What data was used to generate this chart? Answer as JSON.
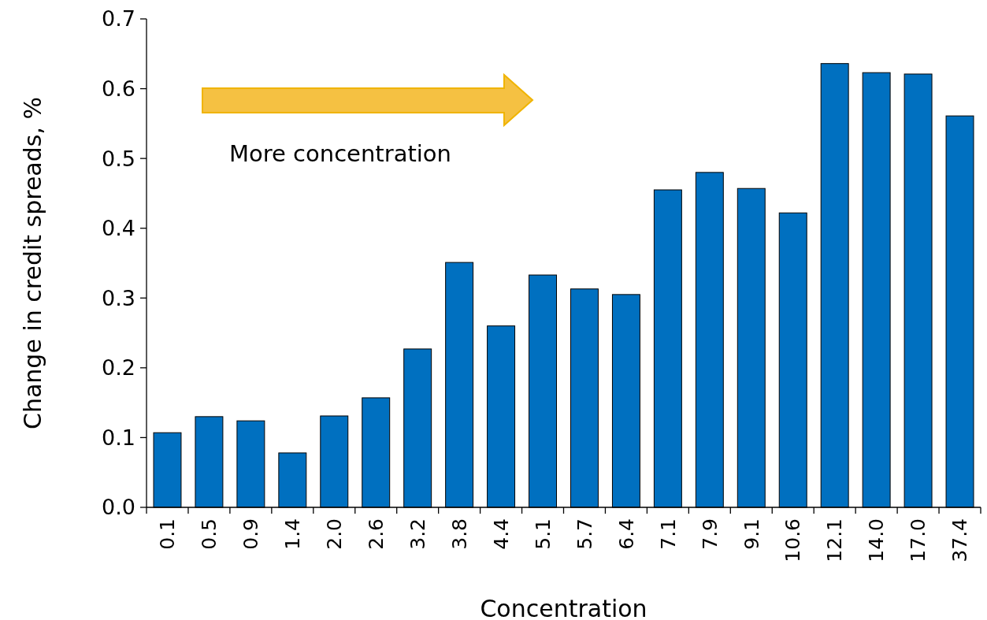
{
  "chart_data": {
    "type": "bar",
    "xlabel": "Concentration",
    "ylabel": "Change in credit spreads, %",
    "categories": [
      "0.1",
      "0.5",
      "0.9",
      "1.4",
      "2.0",
      "2.6",
      "3.2",
      "3.8",
      "4.4",
      "5.1",
      "5.7",
      "6.4",
      "7.1",
      "7.9",
      "9.1",
      "10.6",
      "12.1",
      "14.0",
      "17.0",
      "37.4"
    ],
    "values": [
      0.107,
      0.13,
      0.124,
      0.078,
      0.131,
      0.157,
      0.227,
      0.351,
      0.26,
      0.333,
      0.313,
      0.305,
      0.455,
      0.48,
      0.457,
      0.422,
      0.636,
      0.623,
      0.621,
      0.561
    ],
    "color": "#0070c0",
    "ylim": [
      0,
      0.7
    ],
    "yticks": [
      {
        "value": 0,
        "label": "0.0"
      },
      0.1,
      0.2,
      0.3,
      0.4,
      0.5,
      0.6,
      0.7
    ],
    "grid": false,
    "annotations": [
      "More concentration"
    ]
  }
}
